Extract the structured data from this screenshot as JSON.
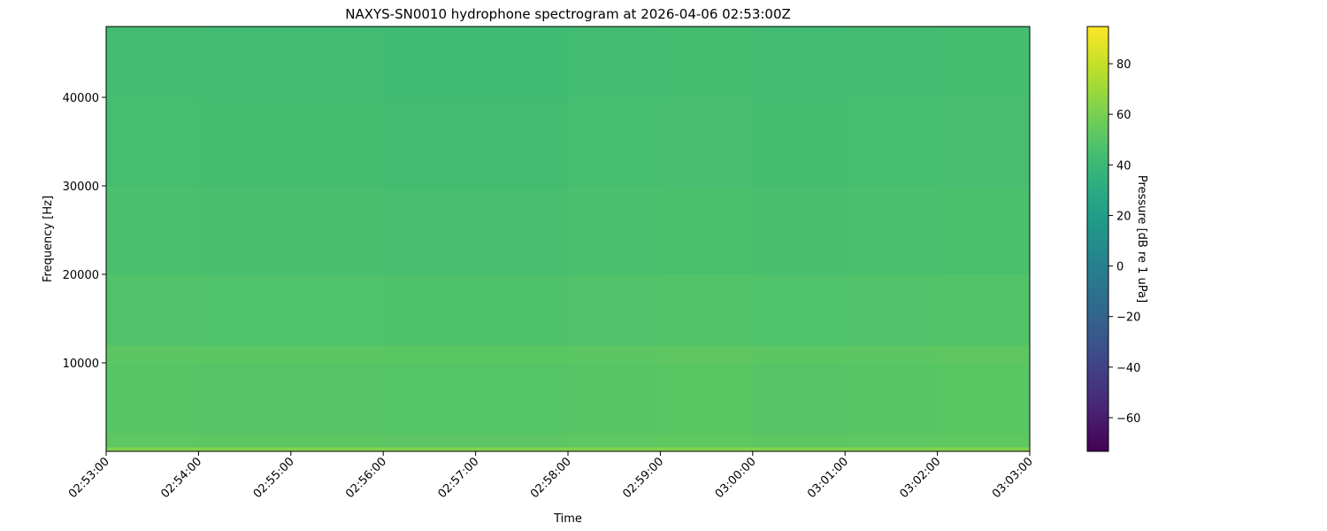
{
  "chart_data": {
    "type": "heatmap",
    "title": "NAXYS-SN0010 hydrophone spectrogram at 2026-04-06 02:53:00Z",
    "xlabel": "Time",
    "ylabel": "Frequency [Hz]",
    "colorbar_label": "Pressure [dB re 1 uPa]",
    "colormap": "viridis",
    "clim": [
      -73.3,
      94.7
    ],
    "colorbar_ticks": [
      -60,
      -40,
      -20,
      0,
      20,
      40,
      60,
      80
    ],
    "colorbar_tick_labels": [
      "−60",
      "−40",
      "−20",
      "0",
      "20",
      "40",
      "60",
      "80"
    ],
    "ylim": [
      0,
      48000
    ],
    "yticks": [
      10000,
      20000,
      30000,
      40000
    ],
    "ytick_labels": [
      "10000",
      "20000",
      "30000",
      "40000"
    ],
    "xticks": [
      "02:53:00",
      "02:54:00",
      "02:55:00",
      "02:56:00",
      "02:57:00",
      "02:58:00",
      "02:59:00",
      "03:00:00",
      "03:01:00",
      "03:02:00",
      "03:03:00"
    ],
    "time_bins": [
      "02:53",
      "02:54",
      "02:55",
      "02:56",
      "02:57",
      "02:58",
      "02:59",
      "03:00",
      "03:01",
      "03:02"
    ],
    "freq_bands_hz": [
      [
        0,
        500
      ],
      [
        500,
        2000
      ],
      [
        2000,
        10000
      ],
      [
        10000,
        12000
      ],
      [
        12000,
        20000
      ],
      [
        20000,
        30000
      ],
      [
        30000,
        40000
      ],
      [
        40000,
        48000
      ]
    ],
    "values_db": [
      [
        62,
        62,
        62,
        62,
        62,
        62,
        62,
        62,
        62,
        62
      ],
      [
        52,
        51.5,
        51.5,
        51,
        51,
        52,
        52.5,
        51.5,
        52,
        52.5
      ],
      [
        50,
        49.5,
        49.5,
        49,
        49,
        50,
        50.5,
        49.5,
        50,
        50.5
      ],
      [
        51.5,
        51,
        51,
        50.5,
        50.5,
        51.5,
        52,
        51,
        51.5,
        52
      ],
      [
        48,
        47.5,
        47.5,
        47,
        47,
        48,
        48.5,
        47.5,
        48,
        48.5
      ],
      [
        45.5,
        45,
        45,
        44.5,
        44.5,
        45.5,
        46,
        45,
        45.5,
        46
      ],
      [
        44,
        43.5,
        43.5,
        43,
        43,
        44,
        44.5,
        43.5,
        44,
        44.5
      ],
      [
        43,
        42.5,
        42.5,
        42,
        42,
        43,
        43.5,
        42.5,
        43,
        43.5
      ]
    ]
  }
}
